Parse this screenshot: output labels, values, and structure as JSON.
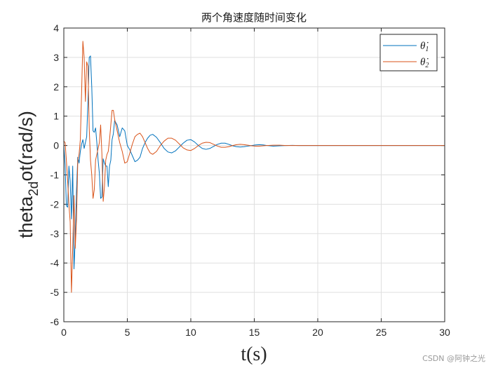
{
  "chart_data": {
    "type": "line",
    "title": "两个角速度随时间变化",
    "xlabel": "t(s)",
    "ylabel": "theta",
    "ylabel_sub": "2d",
    "ylabel_rest": "ot(rad/s)",
    "xlim": [
      0,
      30
    ],
    "ylim": [
      -6,
      4
    ],
    "xticks": [
      0,
      5,
      10,
      15,
      20,
      25,
      30
    ],
    "yticks": [
      -6,
      -5,
      -4,
      -3,
      -2,
      -1,
      0,
      1,
      2,
      3,
      4
    ],
    "grid": true,
    "legend_position": "top-right",
    "colors": {
      "series1": "#0072BD",
      "series2": "#D95319"
    },
    "series": [
      {
        "name": "θ̇1",
        "name_base": "θ̇",
        "name_sub": "1",
        "color": "#0072BD",
        "x": [
          0,
          0.1,
          0.2,
          0.3,
          0.4,
          0.5,
          0.6,
          0.7,
          0.8,
          0.9,
          1.0,
          1.1,
          1.2,
          1.3,
          1.4,
          1.5,
          1.6,
          1.7,
          1.8,
          1.9,
          2.0,
          2.1,
          2.2,
          2.3,
          2.4,
          2.5,
          2.6,
          2.7,
          2.8,
          2.9,
          3.0,
          3.1,
          3.2,
          3.3,
          3.4,
          3.5,
          3.6,
          3.7,
          3.8,
          3.9,
          4.0,
          4.2,
          4.4,
          4.6,
          4.8,
          5.0,
          5.2,
          5.4,
          5.6,
          5.8,
          6.0,
          6.2,
          6.4,
          6.6,
          6.8,
          7.0,
          7.3,
          7.6,
          7.9,
          8.2,
          8.5,
          8.8,
          9.1,
          9.4,
          9.7,
          10.0,
          10.3,
          10.6,
          10.9,
          11.2,
          11.5,
          11.8,
          12.1,
          12.4,
          12.7,
          13.0,
          13.3,
          13.6,
          13.9,
          14.2,
          14.5,
          14.8,
          15.1,
          15.4,
          15.7,
          16.0,
          16.5,
          17.0,
          17.5,
          18.0,
          18.5,
          19.0,
          20,
          25,
          30
        ],
        "y": [
          0,
          -0.65,
          -2.05,
          -2.1,
          -0.7,
          -1.2,
          -2.5,
          -0.7,
          -4.2,
          -3.2,
          -1.5,
          -0.4,
          -0.6,
          -0.2,
          0.05,
          0.2,
          -0.1,
          0.1,
          0.3,
          1.5,
          3.0,
          3.05,
          2.0,
          0.5,
          0.45,
          0.6,
          0.1,
          -0.5,
          -0.95,
          -1.8,
          -1.75,
          -0.45,
          -0.6,
          -0.7,
          -0.7,
          -1.4,
          -0.7,
          -0.5,
          0.2,
          0.4,
          0.85,
          0.7,
          0.3,
          0.6,
          0.5,
          0.0,
          -0.15,
          -0.35,
          -0.55,
          -0.5,
          -0.4,
          -0.1,
          0.1,
          0.25,
          0.35,
          0.38,
          0.28,
          0.1,
          -0.1,
          -0.22,
          -0.25,
          -0.18,
          -0.05,
          0.08,
          0.18,
          0.2,
          0.12,
          0.0,
          -0.1,
          -0.13,
          -0.1,
          -0.03,
          0.04,
          0.08,
          0.08,
          0.04,
          -0.01,
          -0.04,
          -0.05,
          -0.04,
          -0.02,
          0.0,
          0.02,
          0.03,
          0.02,
          0.0,
          -0.02,
          -0.01,
          0.0,
          0.005,
          0.0,
          0.0,
          0.0,
          0.0,
          0.0
        ]
      },
      {
        "name": "θ̇2",
        "name_base": "θ̇",
        "name_sub": "2",
        "color": "#D95319",
        "x": [
          0,
          0.1,
          0.2,
          0.3,
          0.4,
          0.5,
          0.6,
          0.7,
          0.8,
          0.9,
          1.0,
          1.1,
          1.2,
          1.3,
          1.4,
          1.5,
          1.6,
          1.7,
          1.8,
          1.9,
          2.0,
          2.1,
          2.2,
          2.3,
          2.4,
          2.5,
          2.6,
          2.7,
          2.8,
          2.9,
          3.0,
          3.1,
          3.2,
          3.3,
          3.4,
          3.5,
          3.6,
          3.7,
          3.8,
          3.9,
          4.0,
          4.2,
          4.4,
          4.6,
          4.8,
          5.0,
          5.2,
          5.4,
          5.6,
          5.8,
          6.0,
          6.2,
          6.4,
          6.6,
          6.8,
          7.0,
          7.3,
          7.6,
          7.9,
          8.2,
          8.5,
          8.8,
          9.1,
          9.4,
          9.7,
          10.0,
          10.3,
          10.6,
          10.9,
          11.2,
          11.5,
          11.8,
          12.1,
          12.4,
          12.7,
          13.0,
          13.3,
          13.6,
          13.9,
          14.2,
          14.5,
          14.8,
          15.1,
          15.4,
          15.7,
          16.0,
          16.5,
          17.0,
          17.5,
          18.0,
          18.5,
          19.0,
          20,
          25,
          30
        ],
        "y": [
          0.15,
          0.1,
          -0.5,
          -1.2,
          -2.0,
          -2.6,
          -5.0,
          -3.5,
          -1.7,
          -3.5,
          -2.5,
          -0.5,
          -0.3,
          0.2,
          1.8,
          3.55,
          3.0,
          1.5,
          2.85,
          2.7,
          0.6,
          -0.5,
          -1.0,
          -1.8,
          -1.5,
          -0.5,
          -0.3,
          -0.1,
          0.1,
          0.7,
          -0.3,
          -1.9,
          -1.4,
          -0.5,
          -0.3,
          -0.2,
          0.2,
          0.7,
          1.2,
          1.2,
          0.9,
          0.5,
          0.1,
          -0.2,
          -0.6,
          -0.55,
          -0.25,
          0.05,
          0.3,
          0.38,
          0.42,
          0.3,
          0.1,
          -0.1,
          -0.25,
          -0.3,
          -0.2,
          0.0,
          0.15,
          0.25,
          0.25,
          0.18,
          0.05,
          -0.08,
          -0.15,
          -0.17,
          -0.1,
          0.0,
          0.08,
          0.11,
          0.1,
          0.04,
          -0.02,
          -0.06,
          -0.06,
          -0.04,
          0.0,
          0.03,
          0.04,
          0.03,
          0.01,
          -0.01,
          -0.02,
          -0.02,
          -0.01,
          0.0,
          0.01,
          0.01,
          0.0,
          0.0,
          0.0,
          0.0,
          0.0,
          0.0,
          0.0
        ]
      }
    ]
  },
  "watermark": "CSDN @阿钟之光"
}
